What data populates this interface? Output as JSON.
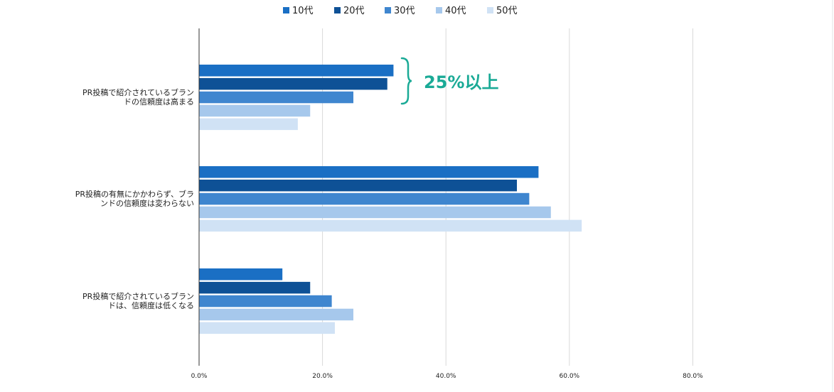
{
  "chart_data": {
    "type": "bar",
    "orientation": "horizontal",
    "categories": [
      [
        "PR投稿で紹介されているブラン",
        "ドの信頼度は高まる"
      ],
      [
        "PR投稿の有無にかかわらず、ブラ",
        "ンドの信頼度は変わらない"
      ],
      [
        "PR投稿で紹介されているブラン",
        "ドは、信頼度は低くなる"
      ]
    ],
    "series": [
      {
        "name": "10代",
        "color": "#1a6fc4",
        "values": [
          31.5,
          55.0,
          13.5
        ]
      },
      {
        "name": "20代",
        "color": "#0e5196",
        "values": [
          30.5,
          51.5,
          18.0
        ]
      },
      {
        "name": "30代",
        "color": "#3f86cf",
        "values": [
          25.0,
          53.5,
          21.5
        ]
      },
      {
        "name": "40代",
        "color": "#a6c8ec",
        "values": [
          18.0,
          57.0,
          25.0
        ]
      },
      {
        "name": "50代",
        "color": "#d0e2f5",
        "values": [
          16.0,
          62.0,
          22.0
        ]
      }
    ],
    "xlim": [
      0,
      80
    ],
    "xticks": [
      "0.0%",
      "20.0%",
      "40.0%",
      "60.0%",
      "80.0%"
    ],
    "grid": true,
    "legend_position": "top-center",
    "annotation": {
      "text": "25%以上",
      "color": "#1aaa96",
      "category_index": 0
    }
  }
}
